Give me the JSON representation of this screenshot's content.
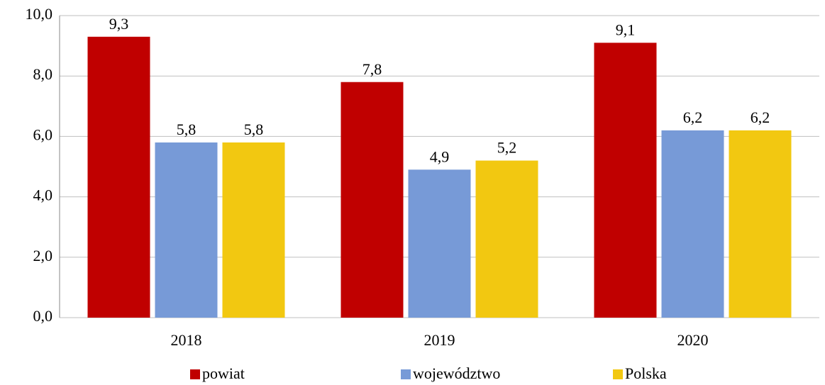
{
  "chart_data": {
    "type": "bar",
    "categories": [
      "2018",
      "2019",
      "2020"
    ],
    "series": [
      {
        "name": "powiat",
        "color": "#c00000",
        "values": [
          9.3,
          7.8,
          9.1
        ],
        "value_labels": [
          "9,3",
          "7,8",
          "9,1"
        ]
      },
      {
        "name": "województwo",
        "color": "#779ad7",
        "values": [
          5.8,
          4.9,
          6.2
        ],
        "value_labels": [
          "5,8",
          "4,9",
          "6,2"
        ]
      },
      {
        "name": "Polska",
        "color": "#f2c811",
        "values": [
          5.8,
          5.2,
          6.2
        ],
        "value_labels": [
          "5,8",
          "5,2",
          "6,2"
        ]
      }
    ],
    "ylim": [
      0,
      10
    ],
    "yticks": [
      {
        "value": 0,
        "label": "0,0"
      },
      {
        "value": 2,
        "label": "2,0"
      },
      {
        "value": 4,
        "label": "4,0"
      },
      {
        "value": 6,
        "label": "6,0"
      },
      {
        "value": 8,
        "label": "8,0"
      },
      {
        "value": 10,
        "label": "10,0"
      }
    ],
    "grid": true,
    "legend": "bottom"
  }
}
